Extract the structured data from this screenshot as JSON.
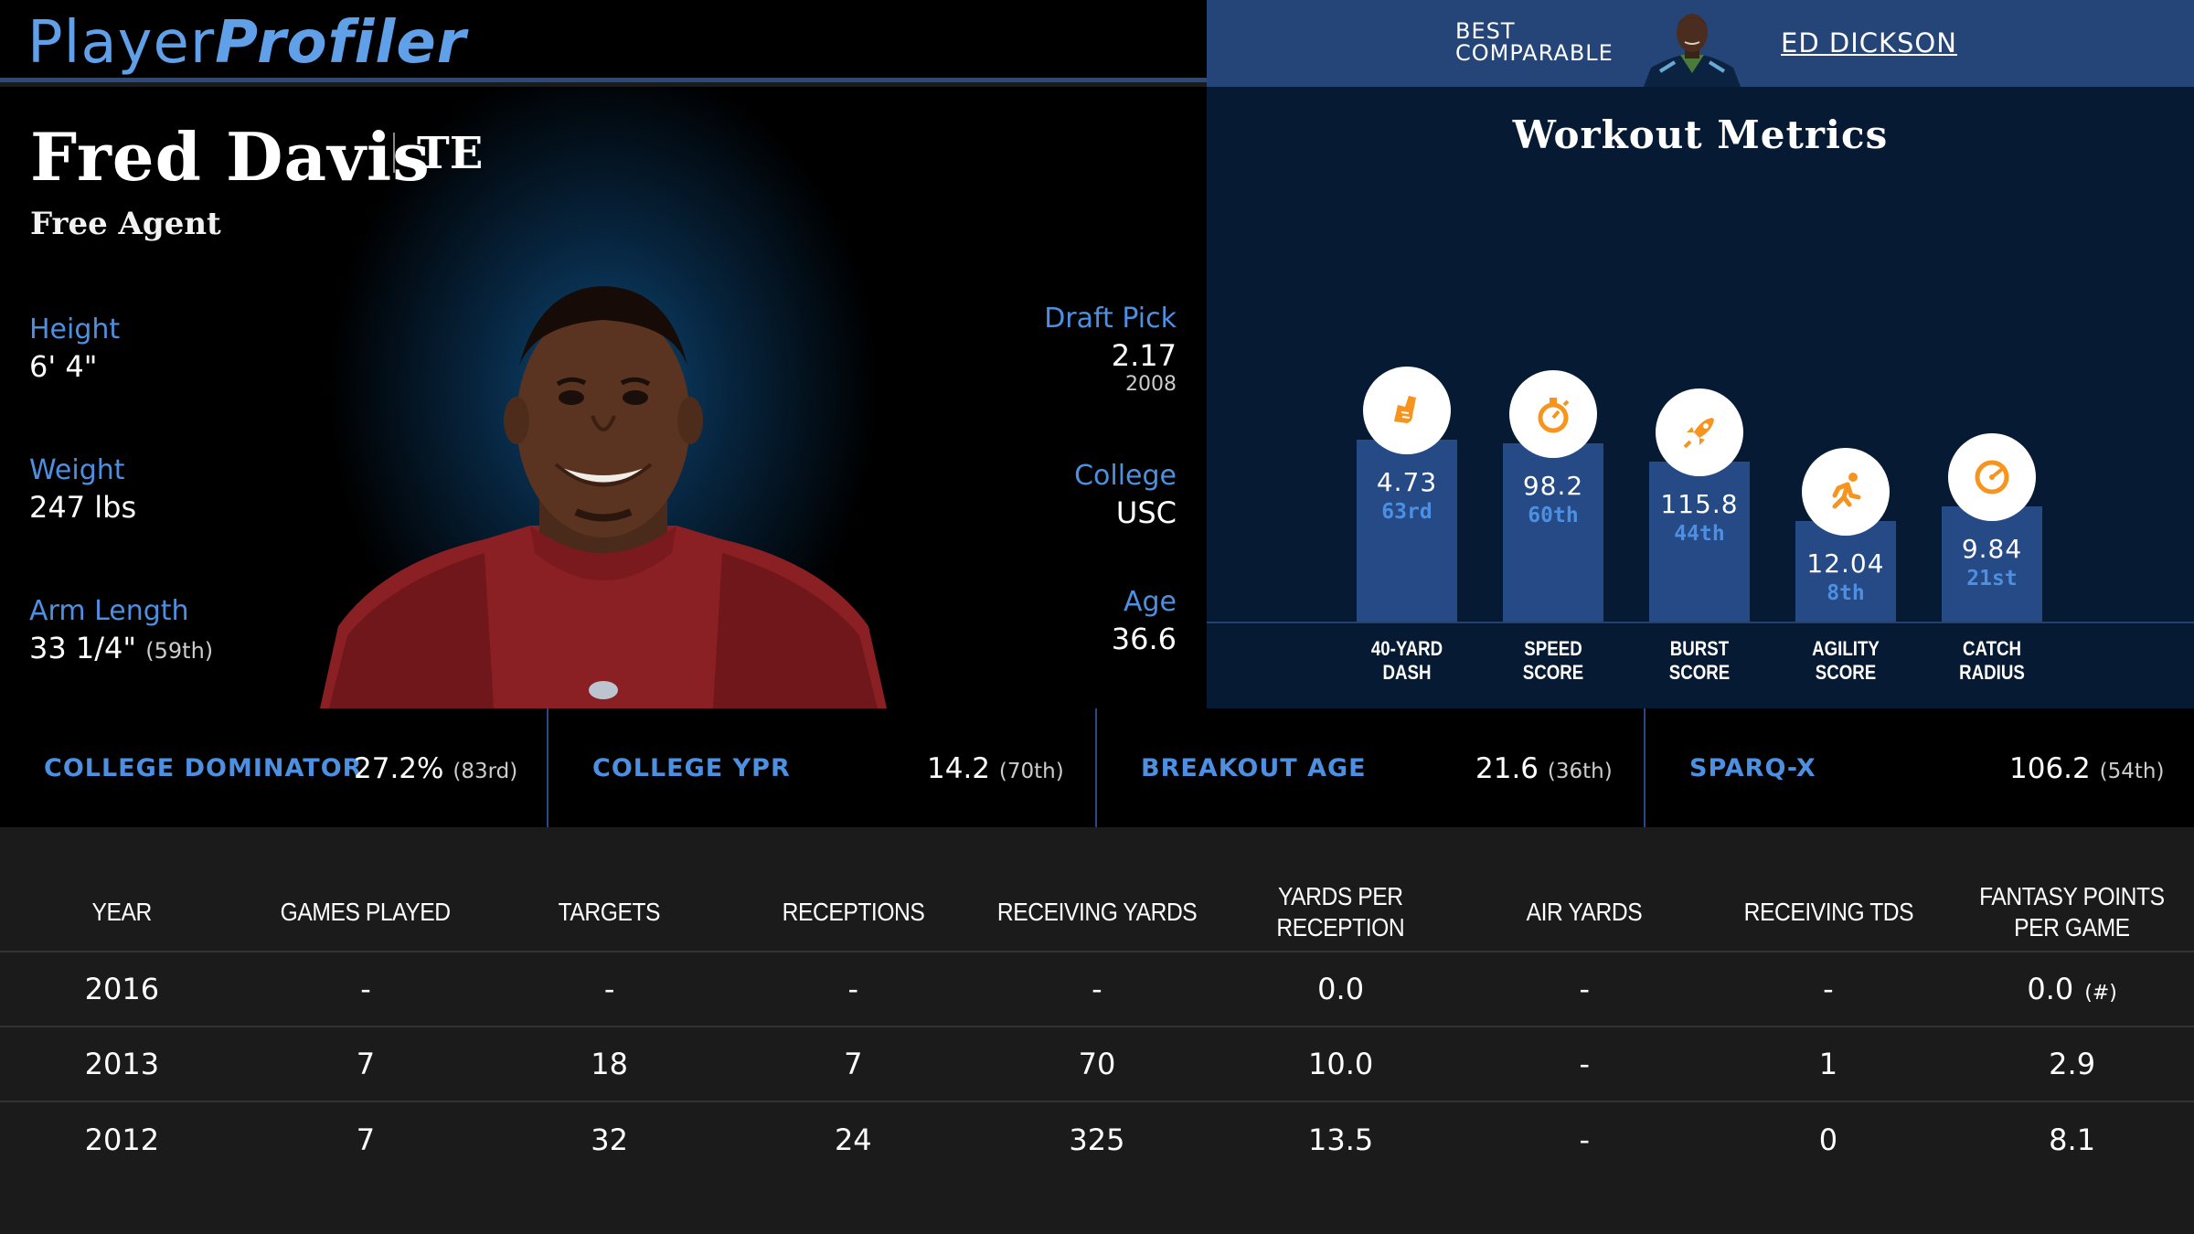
{
  "header": {
    "logo_part1": "Player",
    "logo_part2": "Profiler",
    "best_comparable_line1": "BEST",
    "best_comparable_line2": "COMPARABLE",
    "best_comparable_name": "ED DICKSON"
  },
  "player": {
    "name": "Fred Davis",
    "position": "TE",
    "team": "Free Agent",
    "height_label": "Height",
    "height": "6' 4\"",
    "weight_label": "Weight",
    "weight": "247 lbs",
    "arm_label": "Arm Length",
    "arm": "33 1/4\"",
    "arm_pct": "(59th)",
    "draft_label": "Draft Pick",
    "draft_pick": "2.17",
    "draft_year": "2008",
    "college_label": "College",
    "college": "USC",
    "age_label": "Age",
    "age": "36.6"
  },
  "workout": {
    "title": "Workout Metrics",
    "metrics": [
      {
        "value": "4.73",
        "rank": "63rd",
        "label1": "40-YARD",
        "label2": "DASH",
        "icon": "running-shoe-icon",
        "percentile": 63
      },
      {
        "value": "98.2",
        "rank": "60th",
        "label1": "SPEED",
        "label2": "SCORE",
        "icon": "stopwatch-icon",
        "percentile": 60
      },
      {
        "value": "115.8",
        "rank": "44th",
        "label1": "BURST",
        "label2": "SCORE",
        "icon": "rocket-icon",
        "percentile": 44
      },
      {
        "value": "12.04",
        "rank": "8th",
        "label1": "AGILITY",
        "label2": "SCORE",
        "icon": "runner-icon",
        "percentile": 8
      },
      {
        "value": "9.84",
        "rank": "21st",
        "label1": "CATCH",
        "label2": "RADIUS",
        "icon": "gauge-icon",
        "percentile": 21
      }
    ]
  },
  "college_metrics": [
    {
      "label": "COLLEGE DOMINATOR",
      "value": "27.2%",
      "pct": "(83rd)"
    },
    {
      "label": "COLLEGE YPR",
      "value": "14.2",
      "pct": "(70th)"
    },
    {
      "label": "BREAKOUT AGE",
      "value": "21.6",
      "pct": "(36th)"
    },
    {
      "label": "SPARQ-X",
      "value": "106.2",
      "pct": "(54th)"
    }
  ],
  "table": {
    "headers": [
      "YEAR",
      "GAMES PLAYED",
      "TARGETS",
      "RECEPTIONS",
      "RECEIVING YARDS",
      "YARDS PER RECEPTION",
      "AIR YARDS",
      "RECEIVING TDS",
      "FANTASY POINTS PER GAME"
    ],
    "rows": [
      [
        "2016",
        "-",
        "-",
        "-",
        "-",
        "0.0",
        "-",
        "-",
        "0.0"
      ],
      [
        "2013",
        "7",
        "18",
        "7",
        "70",
        "10.0",
        "-",
        "1",
        "2.9"
      ],
      [
        "2012",
        "7",
        "32",
        "24",
        "325",
        "13.5",
        "-",
        "0",
        "8.1"
      ]
    ],
    "note": "(#)"
  },
  "colors": {
    "accent_blue": "#4d8fe0",
    "bar_blue": "#254a86",
    "header_blue": "#254579",
    "icon_orange": "#f7941d"
  }
}
